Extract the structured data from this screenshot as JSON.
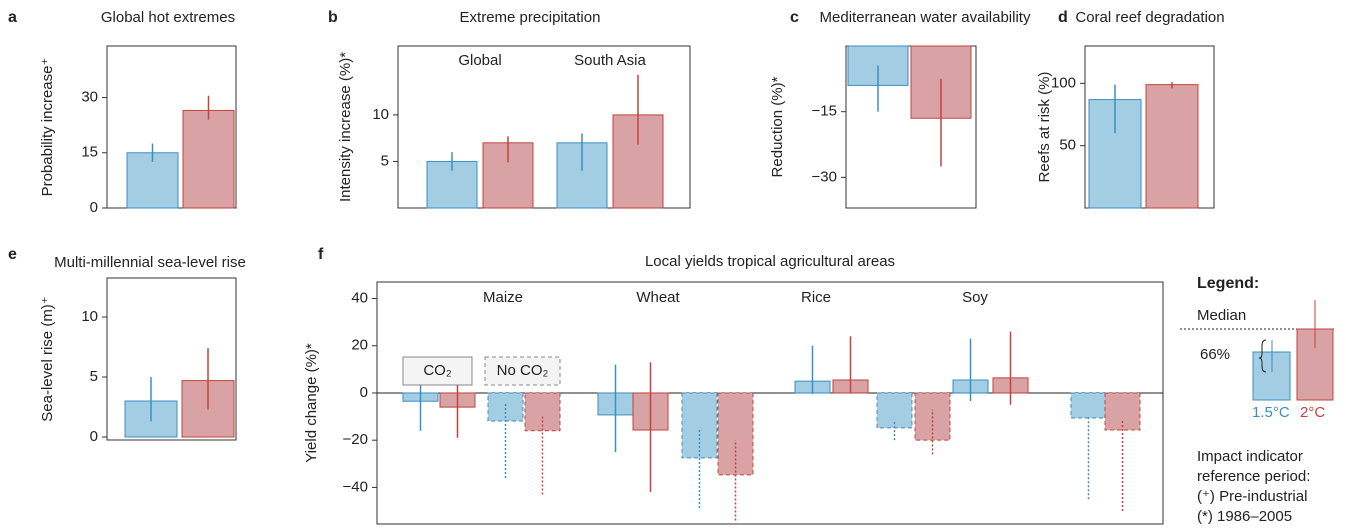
{
  "chart_data": [
    {
      "type": "bar",
      "label": "a",
      "title": "Global hot extremes",
      "ylabel": "Probability increase⁺",
      "ylim": [
        0,
        44
      ],
      "yticks": [
        0,
        15,
        30
      ],
      "series": [
        {
          "color": "#3b8fc2",
          "fill": "#a3cde2",
          "values": [
            15
          ],
          "err_low": [
            12.5
          ],
          "err_high": [
            17.5
          ]
        },
        {
          "color": "#c0443a",
          "fill": "#d9a3a6",
          "values": [
            26.5
          ],
          "err_low": [
            24
          ],
          "err_high": [
            30.5
          ]
        }
      ]
    },
    {
      "type": "bar",
      "label": "b",
      "title": "Extreme precipitation",
      "ylabel": "Intensity increase (%)*",
      "ylim": [
        0,
        17.4
      ],
      "yticks": [
        5,
        10
      ],
      "categories": [
        "Global",
        "South Asia"
      ],
      "series": [
        {
          "color": "#3b8fc2",
          "fill": "#a3cde2",
          "values": [
            5,
            7
          ],
          "err_low": [
            4,
            4
          ],
          "err_high": [
            6,
            8
          ]
        },
        {
          "color": "#c0443a",
          "fill": "#d9a3a6",
          "values": [
            7,
            10
          ],
          "err_low": [
            4.9,
            6.8
          ],
          "err_high": [
            7.7,
            14.3
          ]
        }
      ]
    },
    {
      "type": "bar",
      "label": "c",
      "title": "Mediterranean water availability",
      "ylabel": "Reduction (%)*",
      "ylim": [
        -37,
        0
      ],
      "yticks": [
        {
          "value": -15,
          "label": "−15"
        },
        {
          "value": -30,
          "label": "−30"
        }
      ],
      "series": [
        {
          "color": "#3b8fc2",
          "fill": "#a3cde2",
          "values": [
            -9
          ],
          "err_low": [
            -15
          ],
          "err_high": [
            -4.5
          ]
        },
        {
          "color": "#c0443a",
          "fill": "#d9a3a6",
          "values": [
            -16.5
          ],
          "err_low": [
            -27.5
          ],
          "err_high": [
            -7.5
          ]
        }
      ]
    },
    {
      "type": "bar",
      "label": "d",
      "title": "Coral reef degradation",
      "ylabel": "Reefs at risk (%)",
      "ylim": [
        0,
        130
      ],
      "yticks": [
        50,
        100
      ],
      "series": [
        {
          "color": "#3b8fc2",
          "fill": "#a3cde2",
          "values": [
            87
          ],
          "err_low": [
            60
          ],
          "err_high": [
            99
          ]
        },
        {
          "color": "#c0443a",
          "fill": "#d9a3a6",
          "values": [
            99
          ],
          "err_low": [
            96
          ],
          "err_high": [
            101
          ]
        }
      ]
    },
    {
      "type": "bar",
      "label": "e",
      "title": "Multi-millennial sea-level rise",
      "ylabel": "Sea-level rise (m)⁺",
      "ylim": [
        -0.25,
        13.25
      ],
      "yticks": [
        0,
        5,
        10
      ],
      "series": [
        {
          "color": "#3b8fc2",
          "fill": "#a3cde2",
          "values": [
            3
          ],
          "err_low": [
            1.3
          ],
          "err_high": [
            5
          ]
        },
        {
          "color": "#c0443a",
          "fill": "#d9a3a6",
          "values": [
            4.7
          ],
          "err_low": [
            2.3
          ],
          "err_high": [
            7.4
          ]
        }
      ]
    },
    {
      "type": "bar",
      "label": "f",
      "title": "Local yields tropical agricultural areas",
      "ylabel": "Yield change (%)*",
      "ylim": [
        -55.5,
        47
      ],
      "yticks": [
        40,
        20,
        0,
        {
          "value": -20,
          "label": "−20"
        },
        {
          "value": -40,
          "label": "−40"
        }
      ],
      "categories": [
        "Maize",
        "Wheat",
        "Rice",
        "Soy"
      ],
      "groups": [
        {
          "label": "CO₂",
          "dashed": false,
          "series": [
            {
              "color": "#3b8fc2",
              "fill": "#a3cde2",
              "values": [
                -3.5,
                -9.3,
                5,
                5.5
              ],
              "err_low": [
                -16,
                -25,
                -0.5,
                -3.4
              ],
              "err_high": [
                7.6,
                12,
                20,
                23
              ]
            },
            {
              "color": "#c0443a",
              "fill": "#d9a3a6",
              "values": [
                -6,
                -15.7,
                5.5,
                6.4
              ],
              "err_low": [
                -19,
                -42,
                0,
                -5
              ],
              "err_high": [
                4,
                13,
                24,
                26
              ]
            }
          ]
        },
        {
          "label": "No CO₂",
          "dashed": true,
          "series": [
            {
              "color": "#3b8fc2",
              "fill": "#a3cde2",
              "values": [
                -11.9,
                -27.5,
                -14.8,
                -10.6
              ],
              "err_low": [
                -36,
                -48.7,
                -20,
                -45
              ],
              "err_high": [
                -4,
                -15.7,
                -12,
                -10
              ]
            },
            {
              "color": "#c0443a",
              "fill": "#d9a3a6",
              "values": [
                -16,
                -34.7,
                -20,
                -15.7
              ],
              "err_low": [
                -43,
                -54,
                -26,
                -50
              ],
              "err_high": [
                -10,
                -20,
                -7,
                -11
              ]
            }
          ]
        }
      ]
    }
  ],
  "legend": {
    "title": "Legend:",
    "median": "Median",
    "range": "66%",
    "series_labels": [
      "1.5°C",
      "2°C"
    ],
    "notes": [
      "Impact indicator",
      "reference period:",
      "(⁺) Pre-industrial",
      "(*) 1986–2005"
    ]
  }
}
